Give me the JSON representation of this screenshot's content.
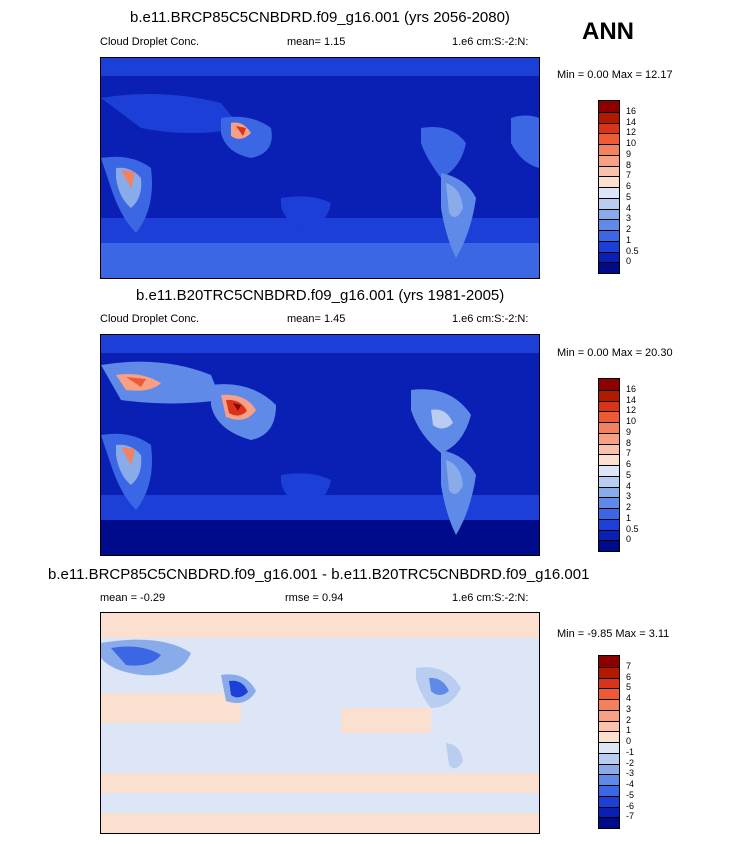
{
  "season": "ANN",
  "panels": [
    {
      "title": "b.e11.BRCP85C5CNBDRD.f09_g16.001 (yrs 2056-2080)",
      "left_label": "Cloud Droplet Conc.",
      "mid_label": "mean=   1.15",
      "units": "1.e6 cm:S:-2:N:",
      "minmax": "Min =   0.00 Max =  12.17",
      "levels": [
        "16",
        "14",
        "12",
        "10",
        "9",
        "8",
        "7",
        "6",
        "5",
        "4",
        "3",
        "2",
        "1",
        "0.5",
        "0"
      ],
      "colors": [
        "#8c0000",
        "#b21a00",
        "#d9341a",
        "#ee5a36",
        "#f3805e",
        "#f7a085",
        "#fac2aa",
        "#fbe0d0",
        "#dde6f7",
        "#b9cdf0",
        "#8aabea",
        "#5f8ae7",
        "#3b67e4",
        "#1c3fd8",
        "#0a20b4",
        "#000b8c"
      ]
    },
    {
      "title": "b.e11.B20TRC5CNBDRD.f09_g16.001 (yrs 1981-2005)",
      "left_label": "Cloud Droplet Conc.",
      "mid_label": "mean=   1.45",
      "units": "1.e6 cm:S:-2:N:",
      "minmax": "Min =   0.00 Max =  20.30",
      "levels": [
        "16",
        "14",
        "12",
        "10",
        "9",
        "8",
        "7",
        "6",
        "5",
        "4",
        "3",
        "2",
        "1",
        "0.5",
        "0"
      ],
      "colors": [
        "#8c0000",
        "#b21a00",
        "#d9341a",
        "#ee5a36",
        "#f3805e",
        "#f7a085",
        "#fac2aa",
        "#fbe0d0",
        "#dde6f7",
        "#b9cdf0",
        "#8aabea",
        "#5f8ae7",
        "#3b67e4",
        "#1c3fd8",
        "#0a20b4",
        "#000b8c"
      ]
    },
    {
      "title": "b.e11.BRCP85C5CNBDRD.f09_g16.001 - b.e11.B20TRC5CNBDRD.f09_g16.001",
      "left_label": "mean =  -0.29",
      "mid_label": "rmse =   0.94",
      "units": "1.e6 cm:S:-2:N:",
      "minmax": "Min =  -9.85 Max =   3.11",
      "levels": [
        "7",
        "6",
        "5",
        "4",
        "3",
        "2",
        "1",
        "0",
        "-1",
        "-2",
        "-3",
        "-4",
        "-5",
        "-6",
        "-7"
      ],
      "colors": [
        "#8c0000",
        "#b21a00",
        "#d9341a",
        "#ee5a36",
        "#f3805e",
        "#f7a085",
        "#fac2aa",
        "#fbe0d0",
        "#dde6f7",
        "#b9cdf0",
        "#8aabea",
        "#5f8ae7",
        "#3b67e4",
        "#1c3fd8",
        "#0a20b4",
        "#000b8c"
      ]
    }
  ],
  "chart_data": [
    {
      "type": "heatmap",
      "title": "b.e11.BRCP85C5CNBDRD.f09_g16.001 (yrs 2056-2080)",
      "variable": "Cloud Droplet Conc.",
      "units": "1.e6 cm:S:-2:N:",
      "mean": 1.15,
      "min": 0.0,
      "max": 12.17,
      "contour_levels": [
        0,
        0.5,
        1,
        2,
        3,
        4,
        5,
        6,
        7,
        8,
        9,
        10,
        12,
        14,
        16
      ]
    },
    {
      "type": "heatmap",
      "title": "b.e11.B20TRC5CNBDRD.f09_g16.001 (yrs 1981-2005)",
      "variable": "Cloud Droplet Conc.",
      "units": "1.e6 cm:S:-2:N:",
      "mean": 1.45,
      "min": 0.0,
      "max": 20.3,
      "contour_levels": [
        0,
        0.5,
        1,
        2,
        3,
        4,
        5,
        6,
        7,
        8,
        9,
        10,
        12,
        14,
        16
      ]
    },
    {
      "type": "heatmap",
      "title": "b.e11.BRCP85C5CNBDRD.f09_g16.001 - b.e11.B20TRC5CNBDRD.f09_g16.001",
      "units": "1.e6 cm:S:-2:N:",
      "mean": -0.29,
      "rmse": 0.94,
      "min": -9.85,
      "max": 3.11,
      "contour_levels": [
        -7,
        -6,
        -5,
        -4,
        -3,
        -2,
        -1,
        0,
        1,
        2,
        3,
        4,
        5,
        6,
        7
      ]
    }
  ]
}
